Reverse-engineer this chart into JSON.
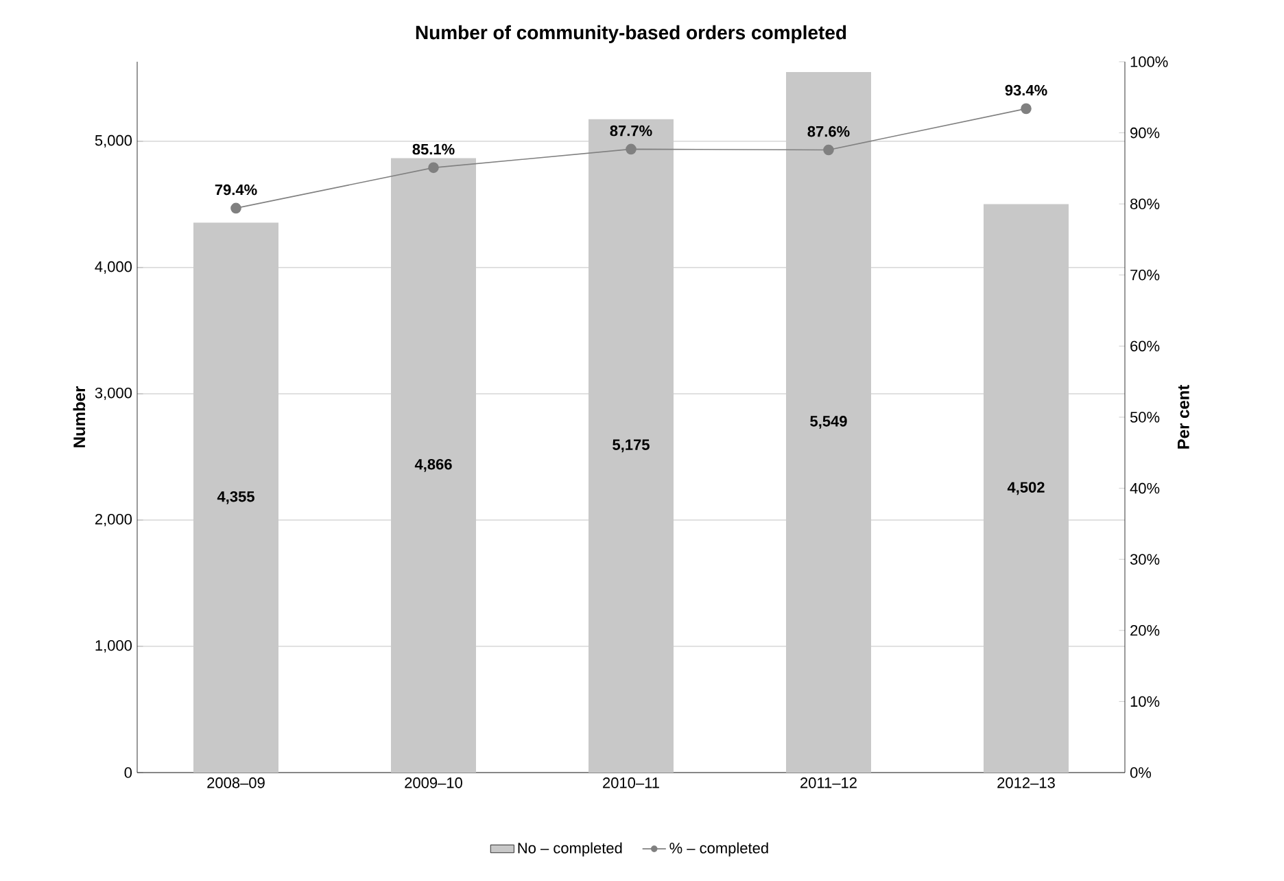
{
  "chart_data": {
    "type": "bar",
    "title": "Number of community-based orders completed",
    "ylabel": "Number",
    "y2label": "Per cent",
    "categories": [
      "2008–09",
      "2009–10",
      "2010–11",
      "2011–12",
      "2012–13"
    ],
    "series": [
      {
        "name": "No – completed",
        "color": "#c8c8c8",
        "values": [
          4355,
          4866,
          5175,
          5549,
          4502
        ],
        "value_labels": [
          "4,355",
          "4,866",
          "5,175",
          "5,549",
          "4,502"
        ]
      },
      {
        "name": "% – completed",
        "type": "line",
        "axis": "y2",
        "color": "#808080",
        "values": [
          79.4,
          85.1,
          87.7,
          87.6,
          93.4
        ],
        "value_labels": [
          "79.4%",
          "85.1%",
          "87.7%",
          "87.6%",
          "93.4%"
        ]
      }
    ],
    "ylim": [
      0,
      5630
    ],
    "yticks": [
      0,
      {
        "value": 1000,
        "label": "1,000"
      },
      {
        "value": 2000,
        "label": "2,000"
      },
      {
        "value": 3000,
        "label": "3,000"
      },
      {
        "value": 4000,
        "label": "4,000"
      },
      {
        "value": 5000,
        "label": "5,000"
      }
    ],
    "y2lim": [
      0,
      100
    ],
    "y2ticks": [
      {
        "value": 0,
        "label": "0%"
      },
      {
        "value": 10,
        "label": "10%"
      },
      {
        "value": 20,
        "label": "20%"
      },
      {
        "value": 30,
        "label": "30%"
      },
      {
        "value": 40,
        "label": "40%"
      },
      {
        "value": 50,
        "label": "50%"
      },
      {
        "value": 60,
        "label": "60%"
      },
      {
        "value": 70,
        "label": "70%"
      },
      {
        "value": 80,
        "label": "80%"
      },
      {
        "value": 90,
        "label": "90%"
      },
      {
        "value": 100,
        "label": "100%"
      }
    ],
    "grid": "y",
    "legend": "bottom",
    "marker": "circle",
    "line_style": "solid"
  }
}
